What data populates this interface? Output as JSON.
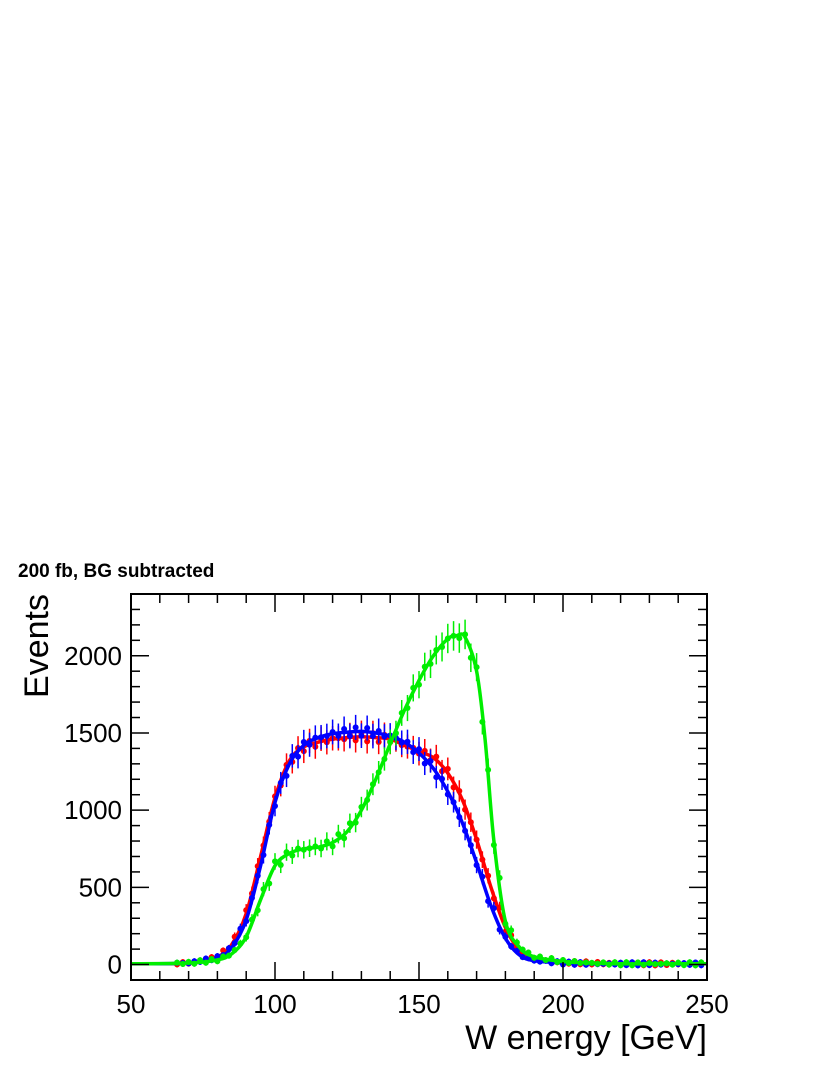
{
  "chart_data": {
    "type": "line",
    "title": "200 fb, BG subtracted",
    "xlabel": "W energy [GeV]",
    "ylabel": "Events",
    "xlim": [
      50,
      250
    ],
    "ylim": [
      -100,
      2400
    ],
    "xticks": [
      50,
      100,
      150,
      200,
      250
    ],
    "yticks": [
      0,
      500,
      1000,
      1500,
      2000
    ],
    "grid": false,
    "legend": "none",
    "series": [
      {
        "color": "#ff0000",
        "x": [
          50,
          70,
          80,
          85,
          90,
          95,
          100,
          105,
          110,
          115,
          120,
          125,
          130,
          135,
          140,
          145,
          150,
          155,
          160,
          165,
          170,
          175,
          180,
          185,
          190,
          200,
          210,
          220,
          230,
          240,
          250
        ],
        "y": [
          5,
          10,
          50,
          130,
          330,
          700,
          1080,
          1320,
          1410,
          1440,
          1460,
          1470,
          1475,
          1470,
          1460,
          1420,
          1380,
          1340,
          1240,
          1070,
          810,
          500,
          240,
          90,
          35,
          15,
          10,
          5,
          5,
          5,
          5
        ]
      },
      {
        "color": "#0000ff",
        "x": [
          50,
          70,
          80,
          85,
          90,
          95,
          100,
          105,
          110,
          115,
          120,
          125,
          130,
          135,
          140,
          145,
          150,
          155,
          160,
          165,
          170,
          175,
          180,
          185,
          190,
          200,
          210,
          220,
          230,
          240,
          250
        ],
        "y": [
          5,
          10,
          45,
          110,
          290,
          640,
          1050,
          1300,
          1420,
          1470,
          1495,
          1505,
          1510,
          1500,
          1480,
          1440,
          1370,
          1270,
          1120,
          920,
          660,
          380,
          170,
          60,
          25,
          10,
          5,
          5,
          5,
          5,
          5
        ]
      },
      {
        "color": "#00ee00",
        "x": [
          50,
          70,
          80,
          85,
          90,
          95,
          100,
          105,
          110,
          115,
          120,
          125,
          130,
          135,
          140,
          145,
          150,
          155,
          160,
          163,
          166,
          170,
          173,
          176,
          180,
          185,
          190,
          200,
          210,
          220,
          230,
          240,
          250
        ],
        "y": [
          5,
          10,
          30,
          70,
          180,
          420,
          640,
          720,
          750,
          760,
          790,
          860,
          1000,
          1200,
          1430,
          1650,
          1840,
          2000,
          2110,
          2130,
          2120,
          1900,
          1450,
          800,
          280,
          110,
          50,
          20,
          10,
          5,
          5,
          5,
          5
        ]
      }
    ]
  }
}
